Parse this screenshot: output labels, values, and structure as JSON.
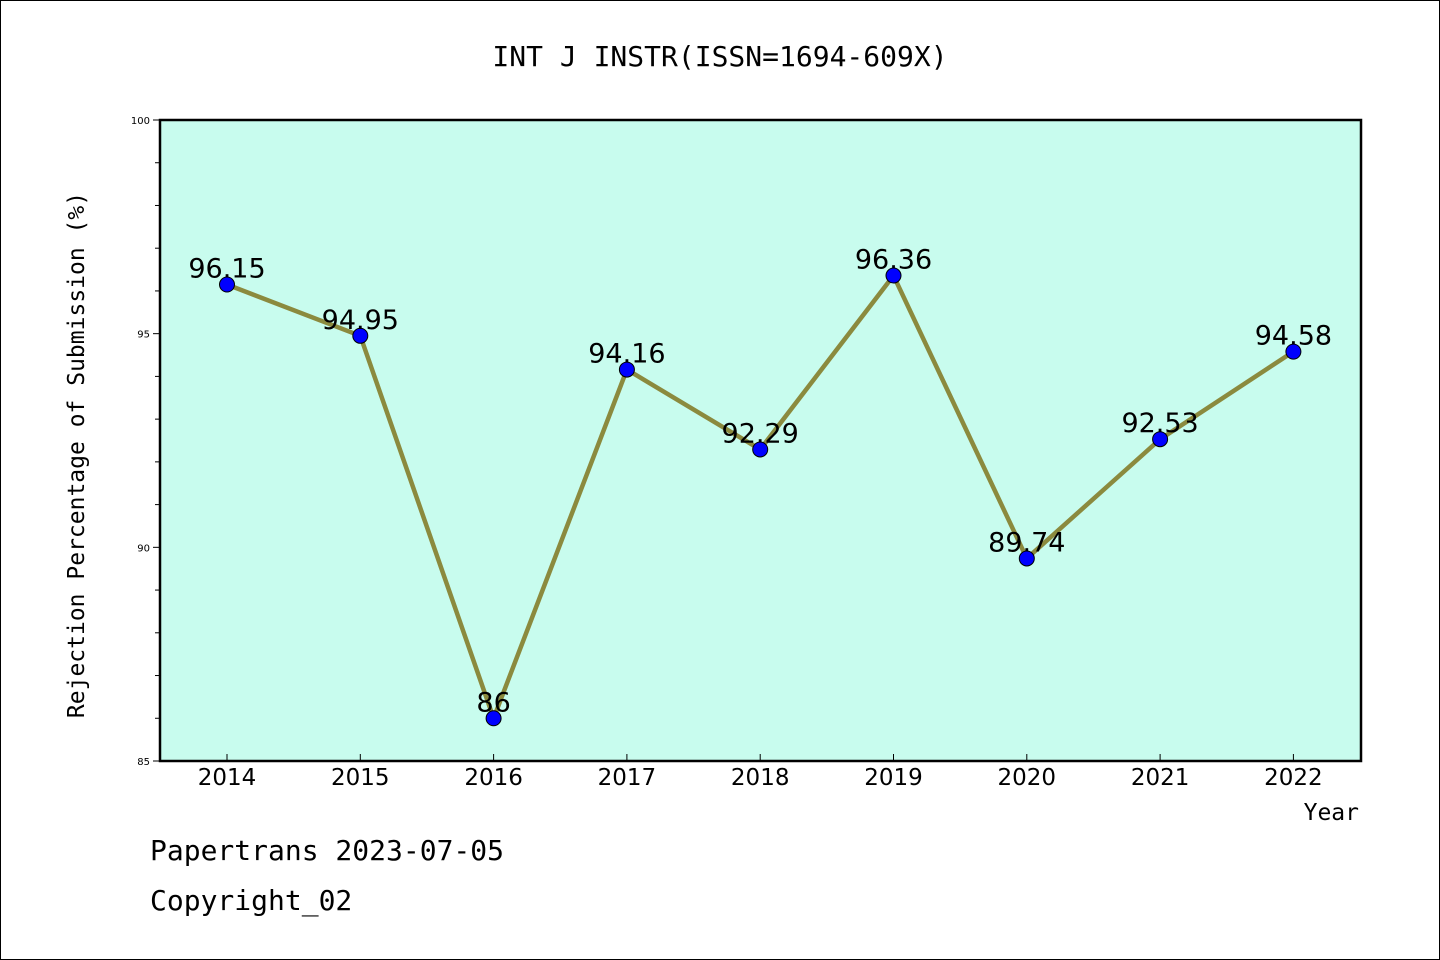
{
  "chart_data": {
    "type": "line",
    "title": "INT J INSTR(ISSN=1694-609X)",
    "xlabel": "Year",
    "ylabel": "Rejection Percentage of Submission (%)",
    "categories": [
      "2014",
      "2015",
      "2016",
      "2017",
      "2018",
      "2019",
      "2020",
      "2021",
      "2022"
    ],
    "series": [
      {
        "values": [
          96.15,
          94.95,
          86,
          94.16,
          92.29,
          96.36,
          89.74,
          92.53,
          94.58
        ],
        "labels": [
          "96.15",
          "94.95",
          "86",
          "94.16",
          "92.29",
          "96.36",
          "89.74",
          "92.53",
          "94.58"
        ]
      }
    ],
    "ylim": [
      85,
      100
    ],
    "yticks": [
      "85",
      "90",
      "95",
      "100"
    ],
    "grid": false,
    "colors": {
      "plot_background": "#c8fcee",
      "line": "#8b8a3e",
      "marker": "#0000ff"
    }
  },
  "footer": {
    "line1": "Papertrans 2023-07-05",
    "line2": "Copyright_02"
  }
}
